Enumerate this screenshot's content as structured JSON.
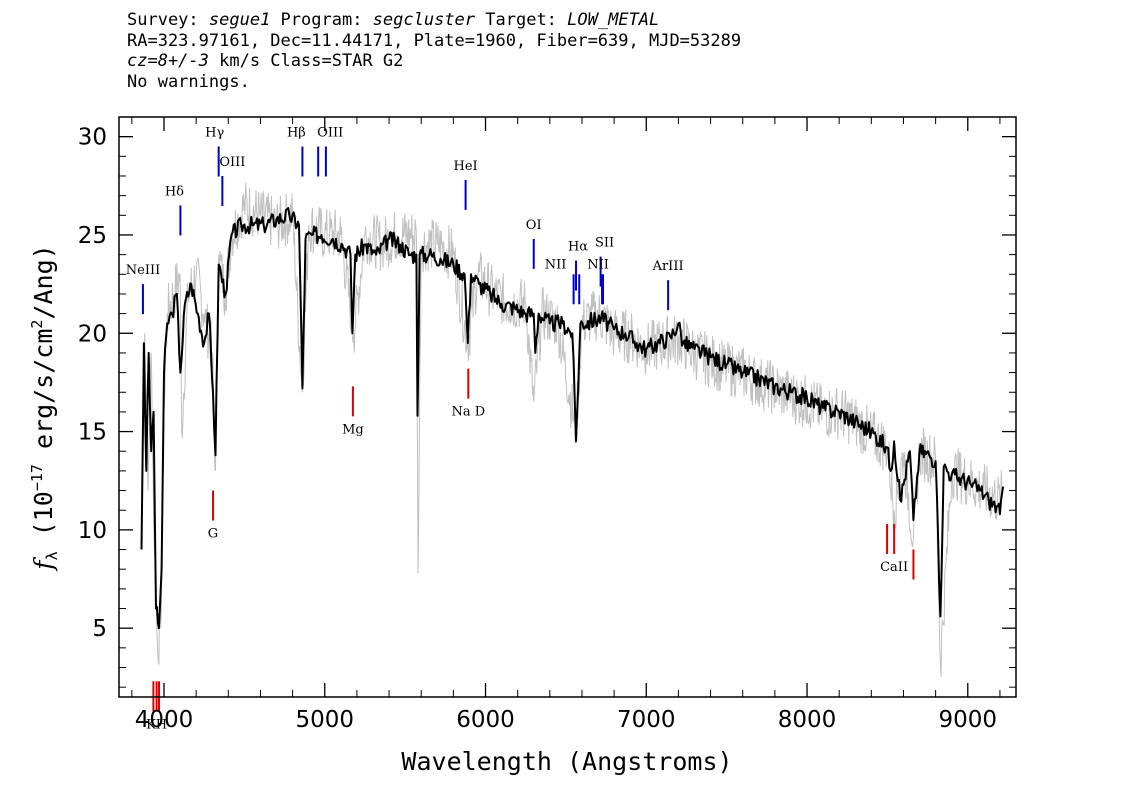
{
  "header": {
    "line1": {
      "survey_label": "Survey: ",
      "survey": "segue1",
      "program_label": " Program: ",
      "program": "segcluster",
      "target_label": " Target: ",
      "target": "LOW_METAL"
    },
    "line2": "RA=323.97161, Dec=11.44171, Plate=1960, Fiber=639, MJD=53289",
    "line3": {
      "cz": "cz=8+/-3",
      "rest": " km/s Class=STAR G2"
    },
    "line4": "No warnings."
  },
  "chart_data": {
    "type": "line",
    "xlabel": "Wavelength (Angstroms)",
    "ylabel": "f_λ (10^-17 erg/s/cm²/Ang)",
    "ylabel_parts": {
      "f": "f",
      "lambda": "λ",
      "pre": " (10",
      "exp": "−17",
      "mid": " erg/s/cm",
      "sq": "2",
      "post": "/Ang)"
    },
    "xlim": [
      3720,
      9300
    ],
    "ylim": [
      1.5,
      31
    ],
    "xticks": [
      4000,
      5000,
      6000,
      7000,
      8000,
      9000
    ],
    "yticks": [
      5,
      10,
      15,
      20,
      25,
      30
    ],
    "xtick_labels": [
      "4000",
      "5000",
      "6000",
      "7000",
      "8000",
      "9000"
    ],
    "ytick_labels": [
      "5",
      "10",
      "15",
      "20",
      "25",
      "30"
    ],
    "series": [
      {
        "role": "raw-flux",
        "color": "#c0c0c0",
        "x": [
          3860,
          3880,
          3900,
          3920,
          3940,
          3960,
          3980,
          4000,
          4020,
          4060,
          4100,
          4110,
          4150,
          4200,
          4250,
          4300,
          4320,
          4340,
          4380,
          4420,
          4500,
          4600,
          4700,
          4800,
          4860,
          4900,
          5000,
          5100,
          5180,
          5250,
          5350,
          5450,
          5570,
          5580,
          5600,
          5700,
          5800,
          5890,
          5950,
          6050,
          6150,
          6250,
          6300,
          6350,
          6450,
          6563,
          6600,
          6700,
          6800,
          6900,
          7000,
          7100,
          7200,
          7300,
          7400,
          7500,
          7600,
          7700,
          7800,
          7900,
          8000,
          8100,
          8200,
          8300,
          8400,
          8500,
          8542,
          8600,
          8662,
          8700,
          8800,
          8830,
          8900,
          9000,
          9100,
          9200,
          9220
        ],
        "y": [
          10,
          20,
          12,
          19,
          9,
          4,
          5,
          16,
          21,
          22,
          23,
          15,
          22,
          23,
          21,
          19,
          13,
          24,
          22,
          25,
          26.5,
          26,
          25.5,
          26,
          17,
          25.5,
          25,
          25,
          20,
          25,
          24.5,
          25,
          25,
          7.8,
          24.5,
          24.5,
          24,
          19.5,
          23,
          22,
          21.5,
          21.5,
          16.5,
          21,
          20.5,
          15,
          20.5,
          21,
          20,
          19.8,
          19.2,
          19.5,
          19.7,
          19,
          18.6,
          18.2,
          18,
          17.5,
          17.2,
          16.8,
          16.5,
          16,
          16,
          15.5,
          14.8,
          14.2,
          11,
          13.9,
          9.5,
          14,
          13.5,
          3.2,
          13,
          12.5,
          12,
          11.5,
          12
        ]
      },
      {
        "role": "smoothed-flux",
        "color": "#000000",
        "x": [
          3860,
          3875,
          3890,
          3905,
          3920,
          3935,
          3950,
          3968,
          3985,
          4000,
          4020,
          4050,
          4080,
          4102,
          4130,
          4170,
          4210,
          4250,
          4280,
          4305,
          4320,
          4340,
          4383,
          4420,
          4480,
          4550,
          4620,
          4700,
          4780,
          4840,
          4861,
          4880,
          4920,
          4980,
          5050,
          5110,
          5160,
          5172,
          5190,
          5250,
          5320,
          5400,
          5470,
          5530,
          5570,
          5577,
          5590,
          5650,
          5720,
          5800,
          5870,
          5890,
          5910,
          5960,
          6030,
          6100,
          6180,
          6250,
          6300,
          6310,
          6330,
          6400,
          6480,
          6540,
          6563,
          6590,
          6650,
          6720,
          6800,
          6870,
          6940,
          7000,
          7070,
          7150,
          7200,
          7230,
          7300,
          7400,
          7500,
          7600,
          7700,
          7800,
          7900,
          8000,
          8100,
          8200,
          8300,
          8400,
          8498,
          8520,
          8542,
          8580,
          8640,
          8662,
          8700,
          8760,
          8800,
          8830,
          8850,
          8900,
          8960,
          9020,
          9080,
          9130,
          9180,
          9200,
          9220
        ],
        "y": [
          9,
          19.5,
          13,
          19,
          14,
          16,
          6,
          5,
          8,
          18,
          20.5,
          21,
          22,
          18,
          21.5,
          22.5,
          21,
          19.5,
          21,
          17,
          13.8,
          23.5,
          22,
          25,
          25.5,
          25.5,
          25.5,
          25.8,
          26,
          25.5,
          17.2,
          24.8,
          25,
          25,
          24.8,
          24.5,
          24,
          20,
          24,
          24.5,
          24,
          24.8,
          24.5,
          24,
          24,
          15.8,
          24,
          24,
          23.8,
          23.5,
          23,
          19.5,
          23,
          22.5,
          22,
          21.5,
          21.3,
          21,
          21,
          19,
          21,
          20.5,
          20.5,
          20,
          14.5,
          20.5,
          20.6,
          20.8,
          20.2,
          20,
          19.5,
          19.2,
          19.5,
          19.8,
          20.5,
          19.5,
          19.2,
          18.8,
          18.4,
          18,
          17.7,
          17.3,
          17,
          16.7,
          16.2,
          16,
          15.5,
          15,
          14.2,
          13,
          14.5,
          11.5,
          14,
          10.5,
          14,
          13.8,
          13.5,
          5.6,
          13.2,
          12.8,
          12.6,
          12.3,
          12,
          11.5,
          11.2,
          10.8,
          12.2
        ]
      }
    ],
    "lines": [
      {
        "label": "NeIII",
        "x": 3869,
        "y": 22.5,
        "color": "#0000cc"
      },
      {
        "label": "Hδ",
        "x": 4102,
        "y": 26.5,
        "color": "#0000cc"
      },
      {
        "label": "Hγ",
        "x": 4340,
        "y": 29.5,
        "color": "#0000cc"
      },
      {
        "label": "OIII",
        "x": 4363,
        "y": 28.0,
        "color": "#0000cc"
      },
      {
        "label": "Hβ",
        "x": 4861,
        "y": 29.5,
        "color": "#0000cc"
      },
      {
        "label": "OIII",
        "x": 4959,
        "y": 29.5,
        "color": "#0000cc"
      },
      {
        "label": "",
        "x": 5007,
        "y": 29.5,
        "color": "#0000cc"
      },
      {
        "label": "HeI",
        "x": 5876,
        "y": 27.8,
        "color": "#0000cc"
      },
      {
        "label": "OI",
        "x": 6300,
        "y": 24.8,
        "color": "#0000cc"
      },
      {
        "label": "NII",
        "x": 6548,
        "y": 23.0,
        "color": "#0000cc"
      },
      {
        "label": "Hα",
        "x": 6563,
        "y": 23.7,
        "color": "#0000cc"
      },
      {
        "label": "",
        "x": 6583,
        "y": 23.0,
        "color": "#0000cc"
      },
      {
        "label": "SII",
        "x": 6716,
        "y": 23.9,
        "color": "#0000cc"
      },
      {
        "label": "NII",
        "x": 6725,
        "y": 23.0,
        "color": "#0000cc"
      },
      {
        "label": "",
        "x": 6731,
        "y": 23.0,
        "color": "#0000cc"
      },
      {
        "label": "ArIII",
        "x": 7136,
        "y": 22.7,
        "color": "#0000cc"
      },
      {
        "label": "",
        "x": 3934,
        "y": 2.3,
        "color": "#dd0000"
      },
      {
        "label": "KH",
        "x": 3954,
        "y": 2.3,
        "color": "#dd0000"
      },
      {
        "label": "",
        "x": 3969,
        "y": 2.3,
        "color": "#dd0000"
      },
      {
        "label": "G",
        "x": 4305,
        "y": 12.0,
        "color": "#dd0000"
      },
      {
        "label": "Mg",
        "x": 5175,
        "y": 17.3,
        "color": "#dd0000"
      },
      {
        "label": "Na D",
        "x": 5893,
        "y": 18.2,
        "color": "#dd0000"
      },
      {
        "label": "",
        "x": 8498,
        "y": 10.3,
        "color": "#dd0000"
      },
      {
        "label": "CaII",
        "x": 8542,
        "y": 10.3,
        "color": "#dd0000"
      },
      {
        "label": "",
        "x": 8662,
        "y": 9.0,
        "color": "#dd0000"
      }
    ],
    "grid": false,
    "legend": "none"
  }
}
